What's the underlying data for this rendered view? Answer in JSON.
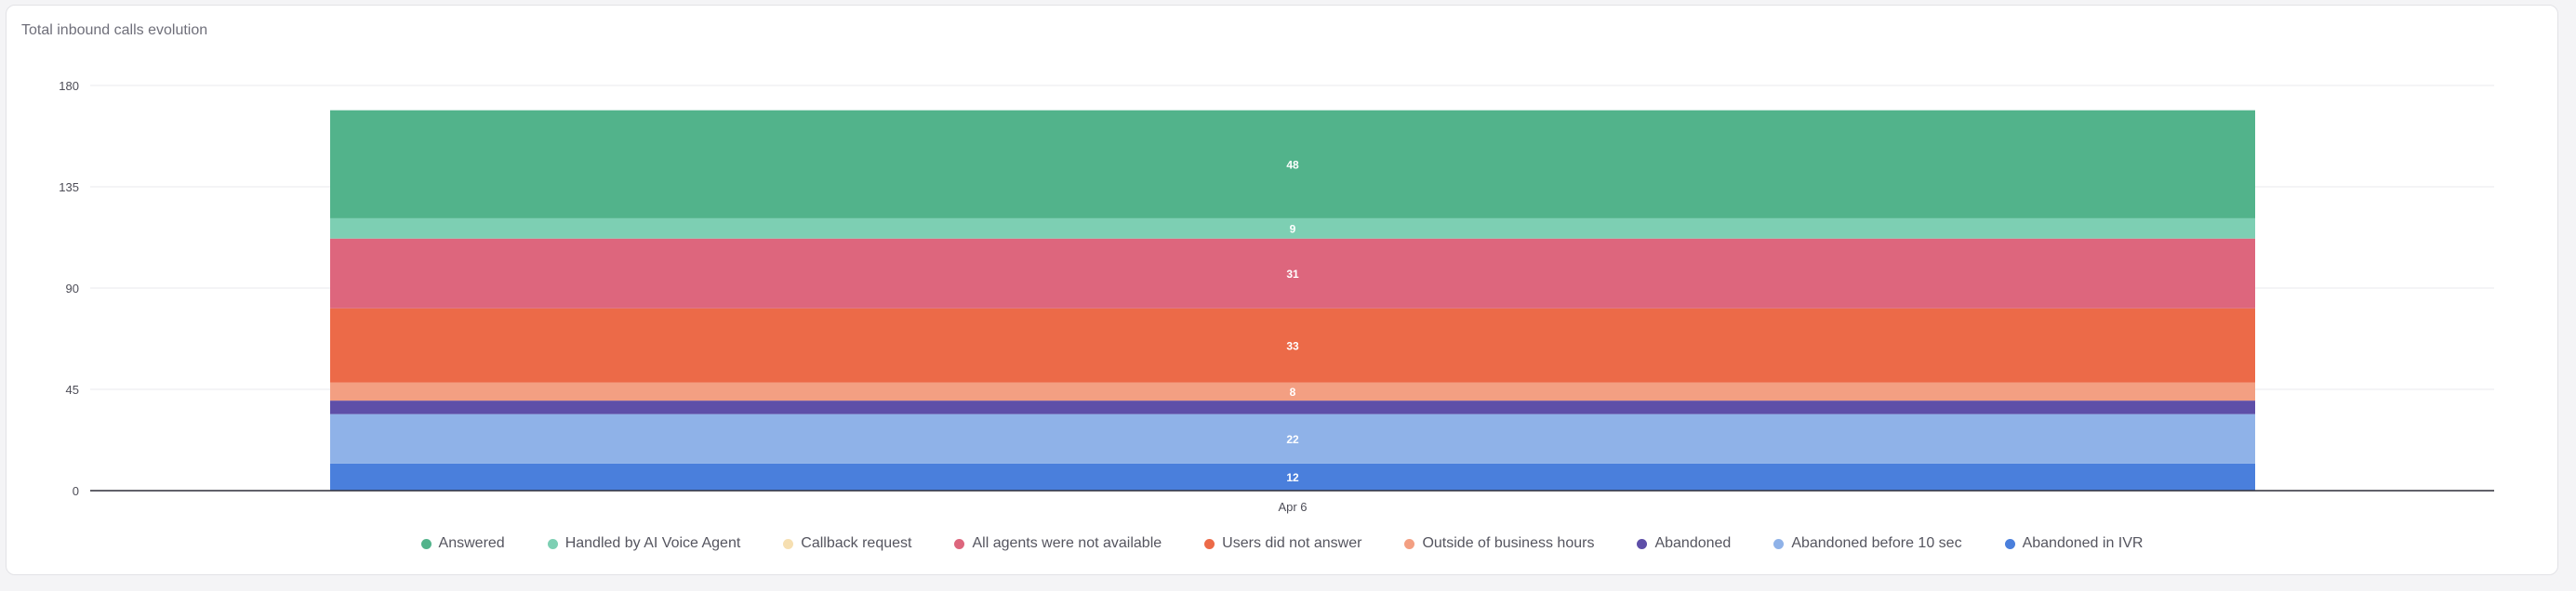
{
  "card": {
    "title": "Total inbound calls evolution"
  },
  "chart_data": {
    "type": "bar",
    "stacked": true,
    "title": "Total inbound calls evolution",
    "categories": [
      "Apr 6"
    ],
    "ylim": [
      0,
      180
    ],
    "yticks": [
      0,
      45,
      90,
      135,
      180
    ],
    "grid": true,
    "legend_position": "bottom",
    "series": [
      {
        "name": "Abandoned in IVR",
        "values": [
          12
        ],
        "color": "#4a7fdc",
        "label": "12"
      },
      {
        "name": "Abandoned before 10 sec",
        "values": [
          22
        ],
        "color": "#8fb2e8",
        "label": "22"
      },
      {
        "name": "Abandoned",
        "values": [
          6
        ],
        "color": "#5e4fa8",
        "label": ""
      },
      {
        "name": "Outside of business hours",
        "values": [
          8
        ],
        "color": "#f39f82",
        "label": "8"
      },
      {
        "name": "Users did not answer",
        "values": [
          33
        ],
        "color": "#ec6a48",
        "label": "33"
      },
      {
        "name": "All agents were not available",
        "values": [
          31
        ],
        "color": "#dd667d",
        "label": "31"
      },
      {
        "name": "Callback request",
        "values": [
          0
        ],
        "color": "#f6dfb1",
        "label": ""
      },
      {
        "name": "Handled by AI Voice Agent",
        "values": [
          9
        ],
        "color": "#7dcfb3",
        "label": "9"
      },
      {
        "name": "Answered",
        "values": [
          48
        ],
        "color": "#52b38b",
        "label": "48"
      }
    ]
  },
  "legend": [
    {
      "label": "Answered",
      "color": "#52b38b"
    },
    {
      "label": "Handled by AI Voice Agent",
      "color": "#7dcfb3"
    },
    {
      "label": "Callback request",
      "color": "#f6dfb1"
    },
    {
      "label": "All agents were not available",
      "color": "#dd667d"
    },
    {
      "label": "Users did not answer",
      "color": "#ec6a48"
    },
    {
      "label": "Outside of business hours",
      "color": "#f39f82"
    },
    {
      "label": "Abandoned",
      "color": "#5e4fa8"
    },
    {
      "label": "Abandoned before 10 sec",
      "color": "#8fb2e8"
    },
    {
      "label": "Abandoned in IVR",
      "color": "#4a7fdc"
    }
  ]
}
